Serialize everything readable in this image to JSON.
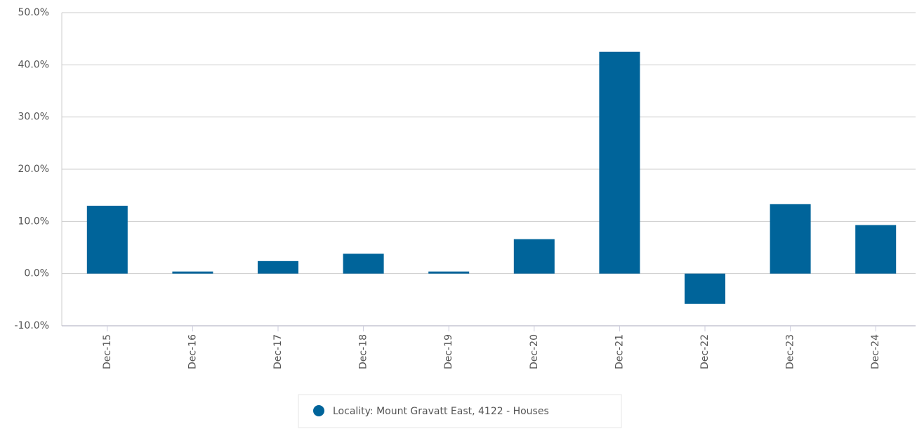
{
  "chart_data": {
    "type": "bar",
    "categories": [
      "Dec-15",
      "Dec-16",
      "Dec-17",
      "Dec-18",
      "Dec-19",
      "Dec-20",
      "Dec-21",
      "Dec-22",
      "Dec-23",
      "Dec-24"
    ],
    "series": [
      {
        "name": "Locality: Mount Gravatt East, 4122 - Houses",
        "color": "#00649a",
        "values": [
          13.0,
          0.4,
          2.4,
          3.8,
          0.4,
          6.6,
          42.5,
          -5.8,
          13.3,
          9.3
        ]
      }
    ],
    "ylim": [
      -10,
      50
    ],
    "yticks": [
      {
        "value": -10,
        "label": "-10.0%"
      },
      {
        "value": 0,
        "label": "0.0%"
      },
      {
        "value": 10,
        "label": "10.0%"
      },
      {
        "value": 20,
        "label": "20.0%"
      },
      {
        "value": 30,
        "label": "30.0%"
      },
      {
        "value": 40,
        "label": "40.0%"
      },
      {
        "value": 50,
        "label": "50.0%"
      }
    ],
    "grid": true
  }
}
